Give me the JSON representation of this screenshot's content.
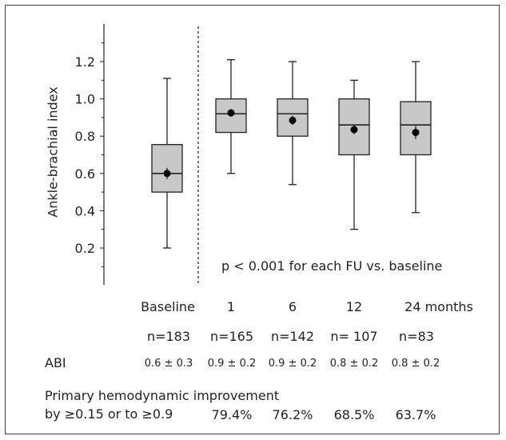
{
  "chart_data": {
    "type": "box",
    "ylabel": "Ankle-brachial index",
    "ylim": [
      0.0,
      1.3
    ],
    "yticks": [
      "0.2",
      "0.4",
      "0.6",
      "0.8",
      "1.0",
      "1.2"
    ],
    "annotation": "p < 0.001 for each FU vs. baseline",
    "categories": [
      "Baseline",
      "1",
      "6",
      "12",
      "24 months"
    ],
    "boxes": [
      {
        "min": 0.2,
        "q1": 0.5,
        "median": 0.6,
        "q3": 0.755,
        "max": 1.11,
        "mean": 0.6,
        "mean_err": [
          0.57,
          0.63
        ]
      },
      {
        "min": 0.6,
        "q1": 0.82,
        "median": 0.92,
        "q3": 1.0,
        "max": 1.21,
        "mean": 0.925,
        "mean_err": [
          0.905,
          0.945
        ]
      },
      {
        "min": 0.54,
        "q1": 0.8,
        "median": 0.92,
        "q3": 1.0,
        "max": 1.2,
        "mean": 0.885,
        "mean_err": [
          0.86,
          0.91
        ]
      },
      {
        "min": 0.3,
        "q1": 0.7,
        "median": 0.86,
        "q3": 1.0,
        "max": 1.1,
        "mean": 0.835,
        "mean_err": [
          0.81,
          0.86
        ]
      },
      {
        "min": 0.39,
        "q1": 0.7,
        "median": 0.86,
        "q3": 0.985,
        "max": 1.2,
        "mean": 0.82,
        "mean_err": [
          0.785,
          0.855
        ]
      }
    ],
    "n_values": [
      "n=183",
      "n=165",
      "n=142",
      "n= 107",
      "n=83"
    ],
    "abi_label": "ABI",
    "abi_values": [
      "0.6 ± 0.3",
      "0.9 ± 0.2",
      "0.9 ± 0.2",
      "0.8 ± 0.2",
      "0.8  ± 0.2"
    ],
    "improvement_label_line1": "Primary hemodynamic improvement",
    "improvement_label_line2": "by ≥0.15 or to ≥0.9",
    "improvement_values": [
      "79.4%",
      "76.2%",
      "68.5%",
      "63.7%"
    ],
    "colors": {
      "box_fill": "#c8c8c8",
      "stroke": "#231f20",
      "mean_dot": "#000000"
    }
  }
}
